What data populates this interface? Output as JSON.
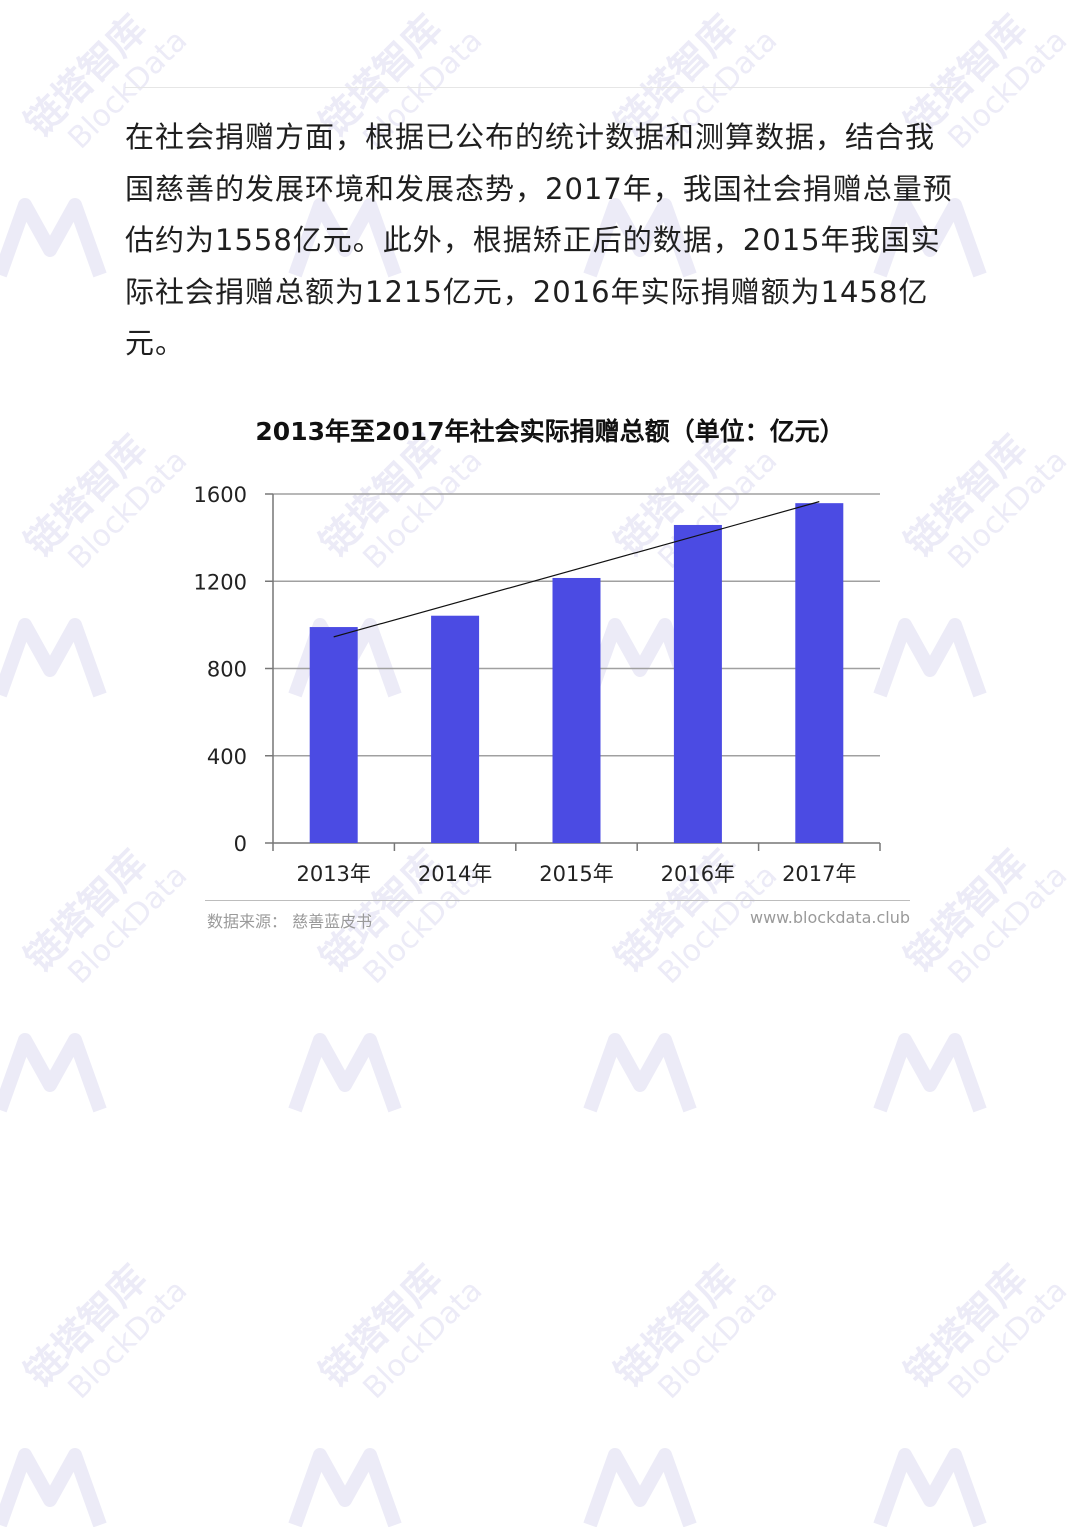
{
  "article": {
    "paragraph": "在社会捐赠方面，根据已公布的统计数据和测算数据，结合我国慈善的发展环境和发展态势，2017年，我国社会捐赠总量预估约为1558亿元。此外，根据矫正后的数据，2015年我国实际社会捐赠总额为1215亿元，2016年实际捐赠额为1458亿元。"
  },
  "chart_data": {
    "type": "bar",
    "title": "2013年至2017年社会实际捐赠总额（单位：亿元）",
    "xlabel": "",
    "ylabel": "",
    "categories": [
      "2013年",
      "2014年",
      "2015年",
      "2016年",
      "2017年"
    ],
    "values": [
      990,
      1042,
      1215,
      1458,
      1558
    ],
    "ylim": [
      0,
      1600
    ],
    "yticks": [
      0,
      400,
      800,
      1200,
      1600
    ],
    "ytick_labels": [
      "0",
      "400",
      "800",
      "1200",
      "1600"
    ],
    "trendline": {
      "start": [
        1,
        945
      ],
      "end": [
        5,
        1565
      ]
    },
    "grid": true,
    "legend": "none",
    "bar_color": "#4b4be3",
    "grid_color": "#a0a0a0"
  },
  "footer": {
    "source": "数据来源：  慈善蓝皮书",
    "site": "www.blockdata.club"
  },
  "watermark": {
    "text_cn": "链塔智库",
    "text_en": "BlockData",
    "color": "#ecebf7"
  }
}
